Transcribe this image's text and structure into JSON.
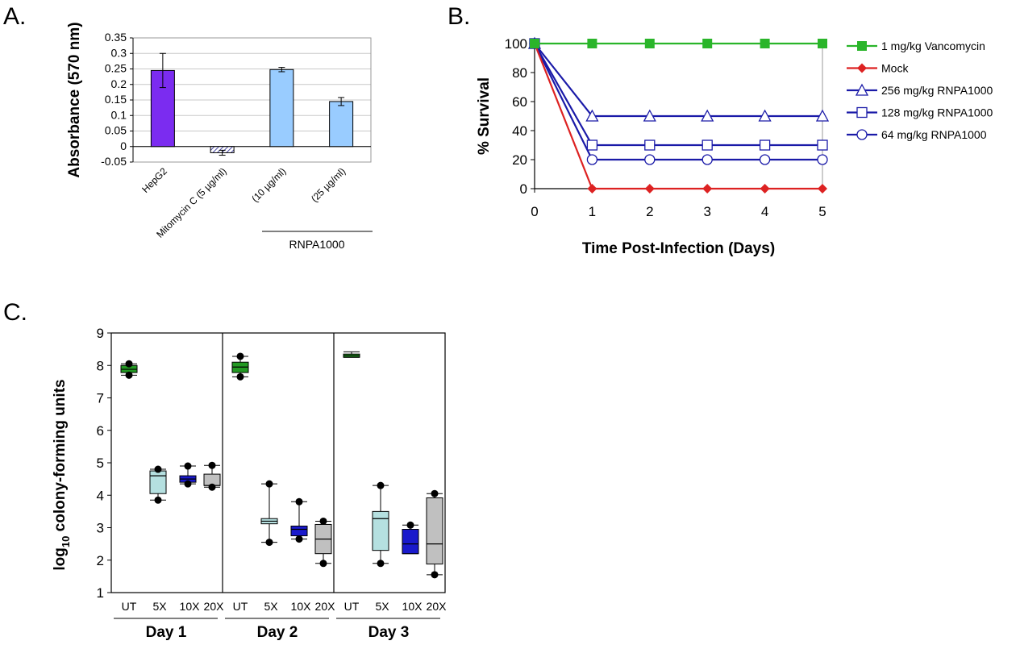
{
  "panels": {
    "a": "A.",
    "b": "B.",
    "c": "C."
  },
  "chart_data": [
    {
      "type": "bar",
      "ylabel": "Absorbance (570 nm)",
      "ylim": [
        -0.05,
        0.35
      ],
      "yticks": [
        "0.35",
        "0.3",
        "0.25",
        "0.2",
        "0.15",
        "0.1",
        "0.05",
        "0",
        "-0.05"
      ],
      "categories": [
        "HepG2",
        "Mitomycin C (5 µg/ml)",
        "(10 µg/ml)",
        "(25 µg/ml)"
      ],
      "values": [
        0.245,
        -0.02,
        0.248,
        0.145
      ],
      "errors": [
        0.055,
        0.008,
        0.007,
        0.013
      ],
      "colors": [
        "#7b2cf0",
        "#bcc4ea",
        "#99ccff",
        "#99ccff"
      ],
      "hatched": [
        false,
        true,
        false,
        false
      ],
      "group_label": "RNPA1000",
      "grid": true
    },
    {
      "type": "line",
      "ylabel": "% Survival",
      "xlabel": "Time Post-Infection (Days)",
      "x": [
        0,
        1,
        2,
        3,
        4,
        5
      ],
      "xticks": [
        "0",
        "1",
        "2",
        "3",
        "4",
        "5"
      ],
      "yticks": [
        "0",
        "20",
        "40",
        "60",
        "80",
        "100"
      ],
      "ylim": [
        0,
        100
      ],
      "legend_position": "right",
      "series": [
        {
          "name": "1 mg/kg Vancomycin",
          "values": [
            100,
            100,
            100,
            100,
            100,
            100
          ],
          "color": "#2ab52a",
          "marker": "square-filled"
        },
        {
          "name": "Mock",
          "values": [
            100,
            0,
            0,
            0,
            0,
            0
          ],
          "color": "#dd2222",
          "marker": "diamond-filled"
        },
        {
          "name": "256 mg/kg RNPA1000",
          "values": [
            100,
            50,
            50,
            50,
            50,
            50
          ],
          "color": "#1a1aa8",
          "marker": "triangle-open"
        },
        {
          "name": "128 mg/kg RNPA1000",
          "values": [
            100,
            30,
            30,
            30,
            30,
            30
          ],
          "color": "#1a1aa8",
          "marker": "square-open"
        },
        {
          "name": "64 mg/kg RNPA1000",
          "values": [
            100,
            20,
            20,
            20,
            20,
            20
          ],
          "color": "#1a1aa8",
          "marker": "circle-open"
        }
      ]
    },
    {
      "type": "box",
      "ylabel_main": "log",
      "ylabel_sub": "10",
      "ylabel_rest": " colony-forming units",
      "ylim": [
        1,
        9
      ],
      "yticks": [
        "1",
        "2",
        "3",
        "4",
        "5",
        "6",
        "7",
        "8",
        "9"
      ],
      "groups": [
        {
          "label": "Day 1",
          "boxes": [
            {
              "label": "UT",
              "min": 7.7,
              "q1": 7.78,
              "median": 7.88,
              "q3": 8.0,
              "max": 8.05,
              "outliers": [
                8.05,
                7.7
              ],
              "color": "#229922"
            },
            {
              "label": "5X",
              "min": 3.85,
              "q1": 4.05,
              "median": 4.6,
              "q3": 4.75,
              "max": 4.8,
              "outliers": [
                4.8,
                3.85
              ],
              "color": "#b5e0e0"
            },
            {
              "label": "10X",
              "min": 4.35,
              "q1": 4.4,
              "median": 4.5,
              "q3": 4.6,
              "max": 4.9,
              "outliers": [
                4.9,
                4.35
              ],
              "color": "#1a1acc"
            },
            {
              "label": "20X",
              "min": 4.25,
              "q1": 4.3,
              "median": 4.3,
              "q3": 4.65,
              "max": 4.92,
              "outliers": [
                4.92,
                4.25
              ],
              "color": "#c0c0c0"
            }
          ]
        },
        {
          "label": "Day 2",
          "boxes": [
            {
              "label": "UT",
              "min": 7.65,
              "q1": 7.78,
              "median": 7.95,
              "q3": 8.1,
              "max": 8.28,
              "outliers": [
                8.28,
                7.65
              ],
              "color": "#229922"
            },
            {
              "label": "5X",
              "min": 2.55,
              "q1": 3.12,
              "median": 3.2,
              "q3": 3.28,
              "max": 4.35,
              "outliers": [
                4.35,
                2.55
              ],
              "color": "#b5e0e0"
            },
            {
              "label": "10X",
              "min": 2.65,
              "q1": 2.75,
              "median": 2.95,
              "q3": 3.05,
              "max": 3.8,
              "outliers": [
                3.8,
                2.65
              ],
              "color": "#1a1acc"
            },
            {
              "label": "20X",
              "min": 1.9,
              "q1": 2.2,
              "median": 2.65,
              "q3": 3.1,
              "max": 3.2,
              "outliers": [
                3.2,
                1.9
              ],
              "color": "#c0c0c0"
            }
          ]
        },
        {
          "label": "Day 3",
          "boxes": [
            {
              "label": "UT",
              "min": 8.25,
              "q1": 8.25,
              "median": 8.3,
              "q3": 8.35,
              "max": 8.42,
              "outliers": [],
              "color": "#229922"
            },
            {
              "label": "5X",
              "min": 1.9,
              "q1": 2.3,
              "median": 3.28,
              "q3": 3.5,
              "max": 4.3,
              "outliers": [
                4.3,
                1.9
              ],
              "color": "#b5e0e0"
            },
            {
              "label": "10X",
              "min": 2.2,
              "q1": 2.2,
              "median": 2.5,
              "q3": 2.95,
              "max": 3.08,
              "outliers": [
                3.08
              ],
              "color": "#1a1acc"
            },
            {
              "label": "20X",
              "min": 1.55,
              "q1": 1.88,
              "median": 2.5,
              "q3": 3.92,
              "max": 4.05,
              "outliers": [
                4.05,
                1.55
              ],
              "color": "#c0c0c0"
            }
          ]
        }
      ]
    }
  ]
}
